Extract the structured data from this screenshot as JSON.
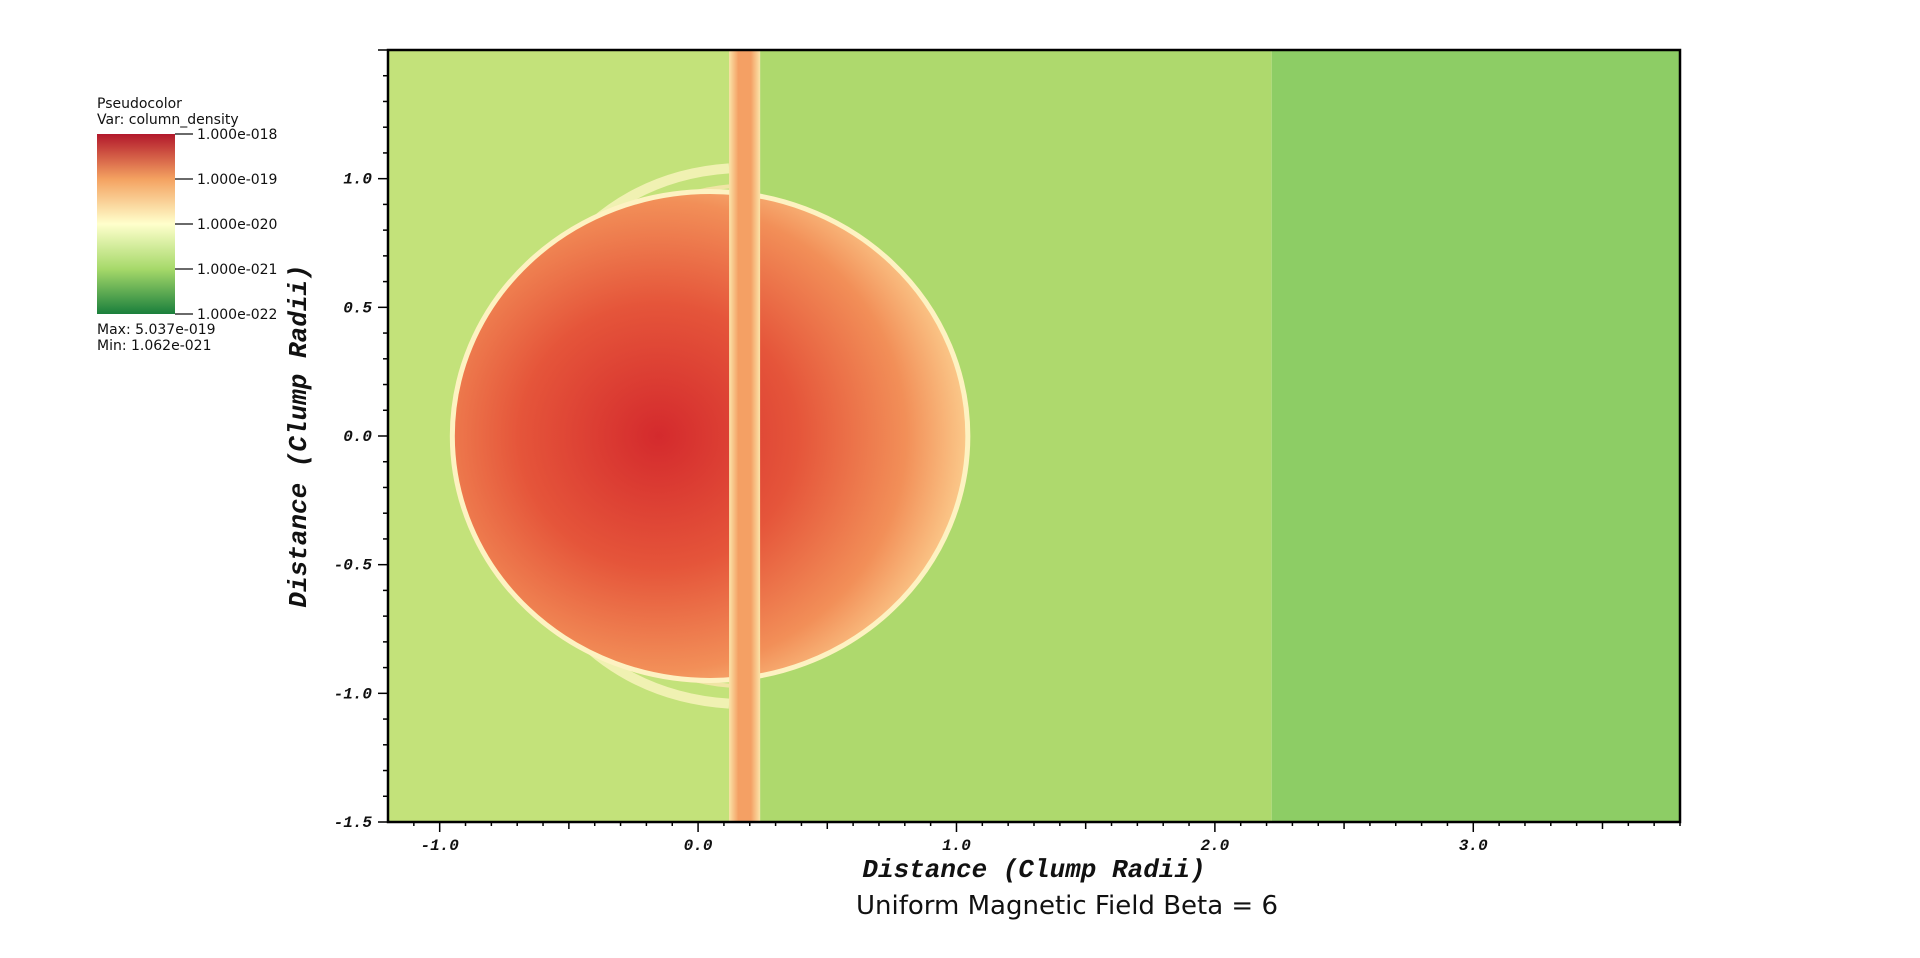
{
  "chart_data": {
    "type": "heatmap",
    "title": "Uniform Magnetic Field Beta = 6",
    "xlabel": "Distance (Clump Radii)",
    "ylabel": "Distance (Clump Radii)",
    "xlim": [
      -1.2,
      3.8
    ],
    "ylim": [
      -1.5,
      1.5
    ],
    "x_ticks": [
      -1.0,
      0.0,
      1.0,
      2.0,
      3.0
    ],
    "x_tick_labels": [
      "-1.0",
      "0.0",
      "1.0",
      "2.0",
      "3.0"
    ],
    "y_ticks": [
      -1.5,
      -1.0,
      -0.5,
      0.0,
      0.5,
      1.0
    ],
    "y_tick_labels": [
      "-1.5",
      "-1.0",
      "-0.5",
      "0.0",
      "0.5",
      "1.0"
    ],
    "colorbar": {
      "header": "Pseudocolor",
      "var_label": "Var: column_density",
      "scale": "log",
      "tick_labels": [
        "1.000e-018",
        "1.000e-019",
        "1.000e-020",
        "1.000e-021",
        "1.000e-022"
      ],
      "max_label": "Max:  5.037e-019",
      "min_label": "Min:  1.062e-021",
      "colors": [
        "#b2182b",
        "#f4a261",
        "#ffffcc",
        "#a6d96a",
        "#1a7f3c"
      ]
    },
    "features": {
      "clump_center": [
        0.0,
        0.0
      ],
      "clump_radius": 0.95,
      "filament_x": [
        0.12,
        0.24
      ],
      "front_x": 2.22,
      "background_left": "#c3e27a",
      "background_mid": "#aed96d",
      "background_right": "#8dcd65"
    }
  }
}
